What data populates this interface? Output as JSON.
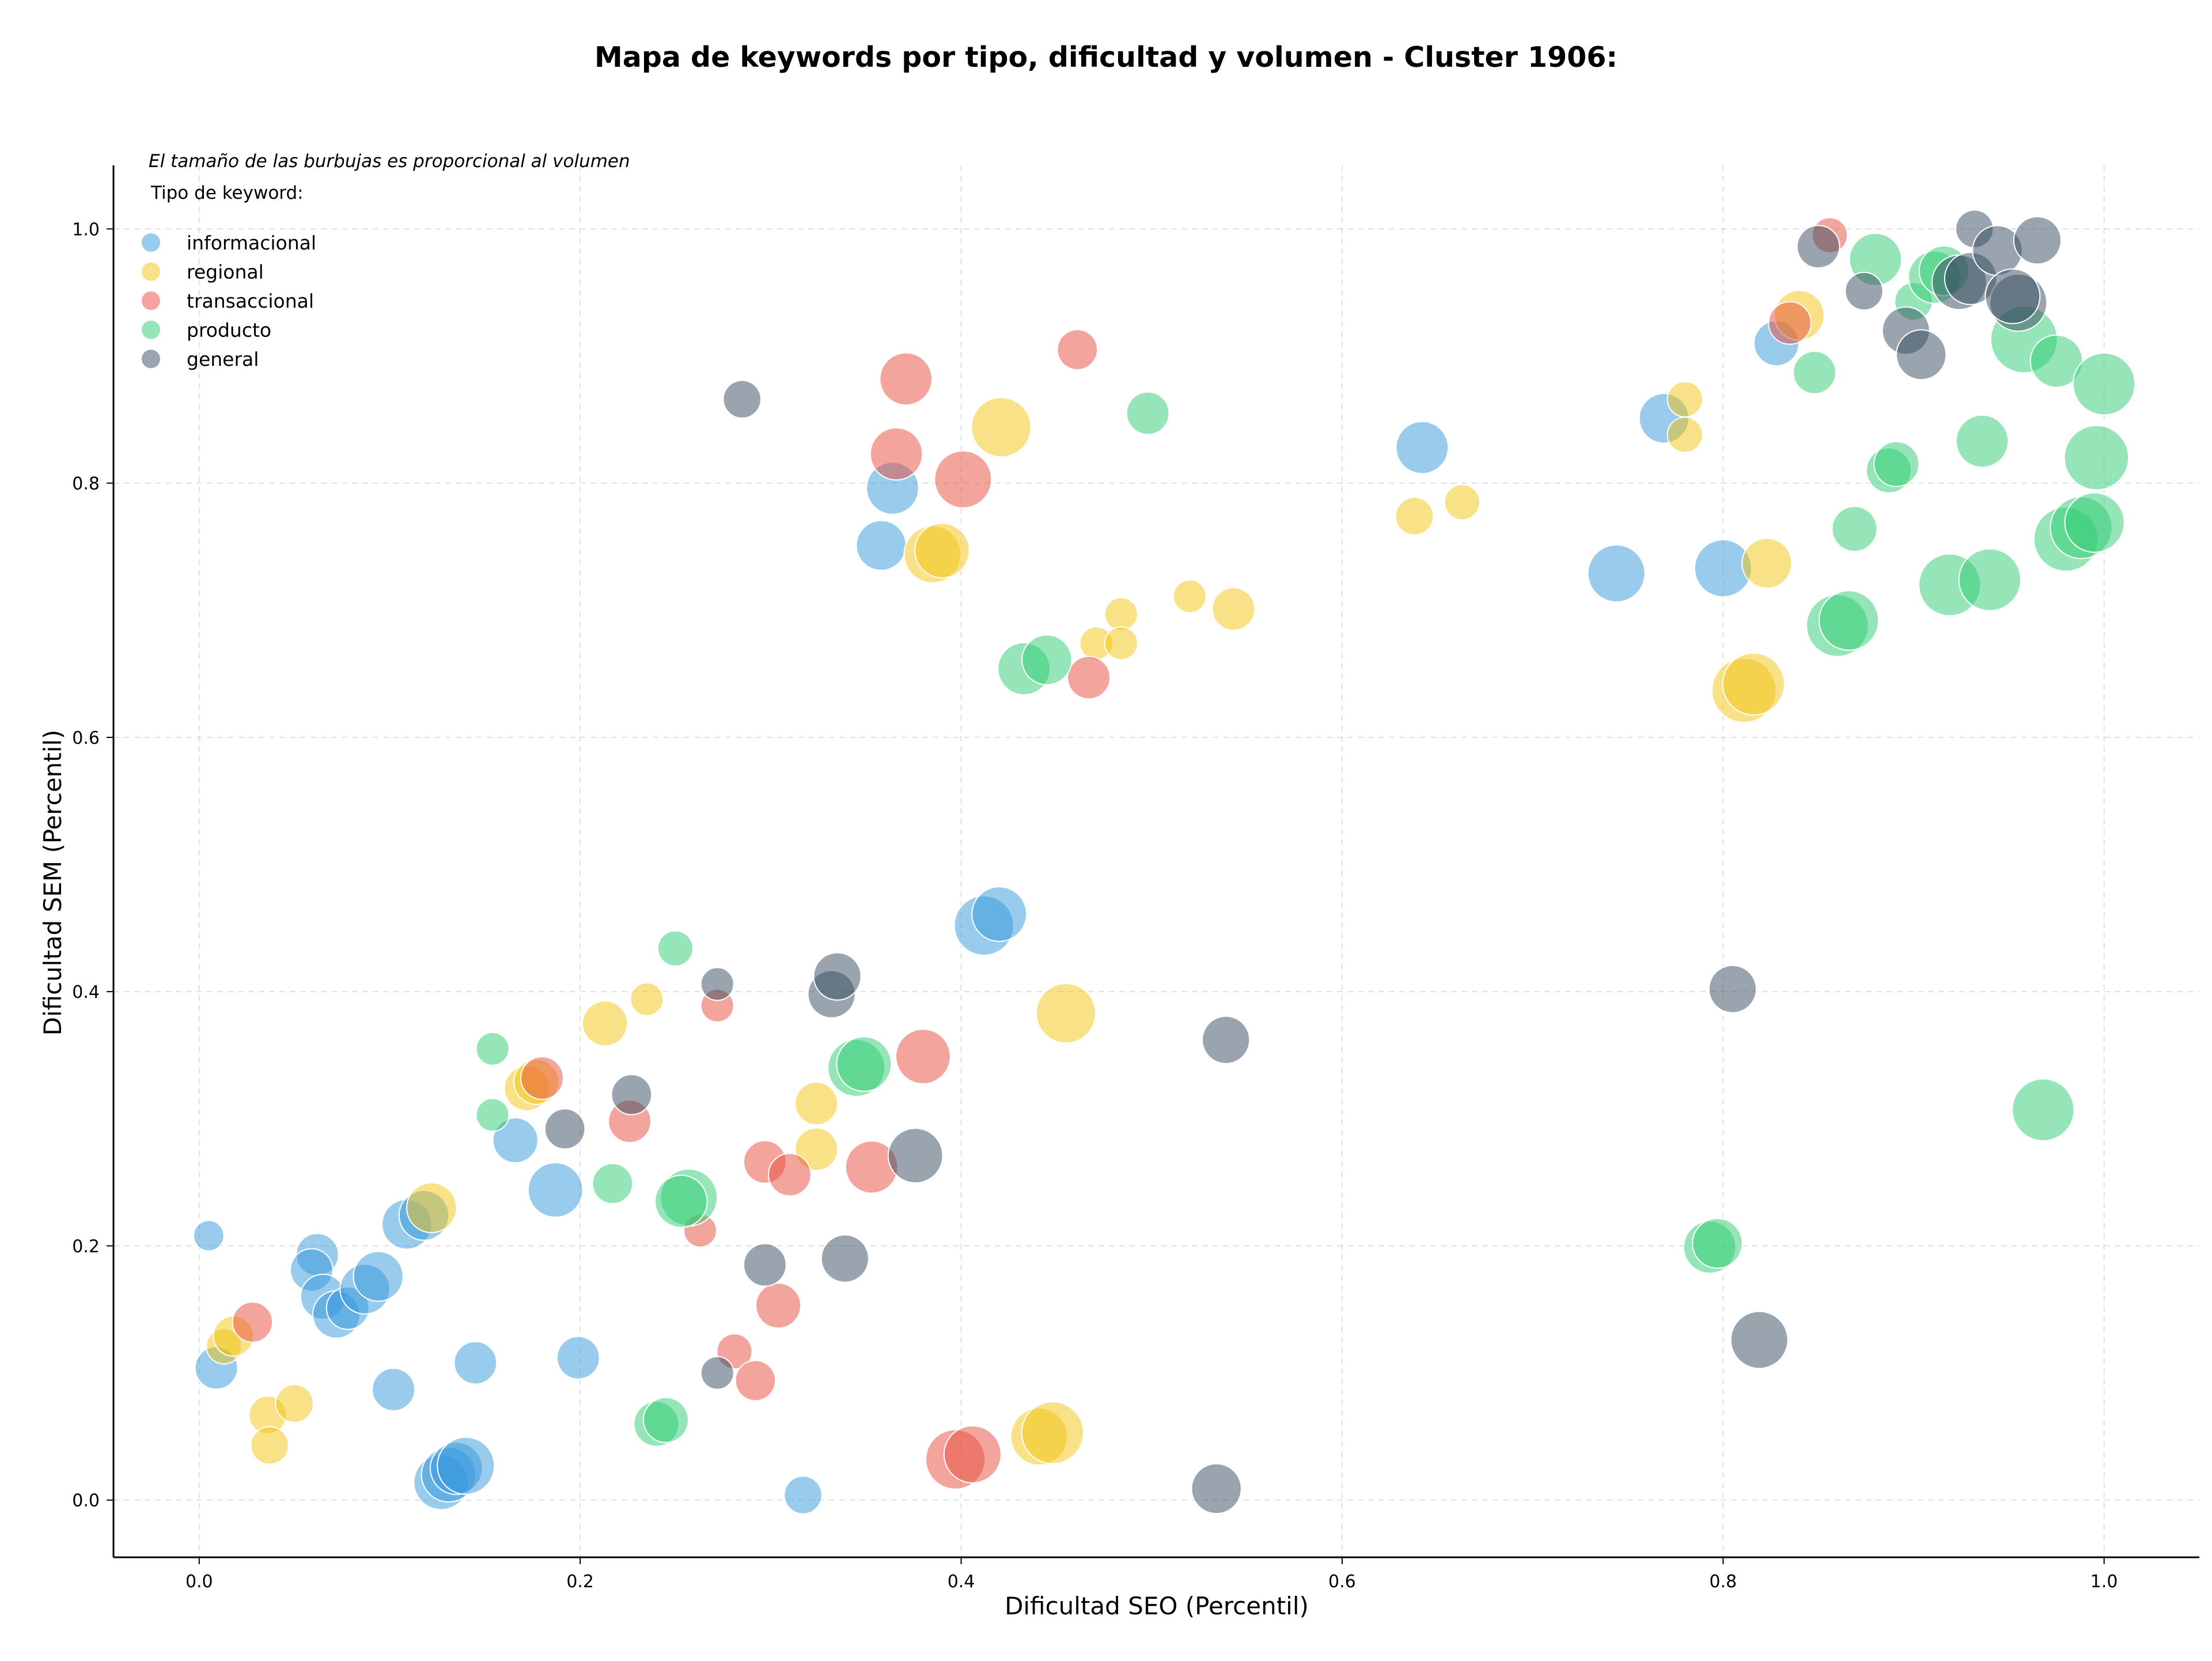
{
  "chart_data": {
    "type": "scatter",
    "title": "Mapa de keywords por tipo, dificultad y volumen - Cluster 1906:",
    "xlabel": "Dificultad SEO (Percentil)",
    "ylabel": "Dificultad SEM (Percentil)",
    "xlim": [
      -0.045,
      1.05
    ],
    "ylim": [
      -0.045,
      1.05
    ],
    "xticks": [
      0.0,
      0.2,
      0.4,
      0.6,
      0.8,
      1.0
    ],
    "yticks": [
      0.0,
      0.2,
      0.4,
      0.6,
      0.8,
      1.0
    ],
    "xtick_labels": [
      "0.0",
      "0.2",
      "0.4",
      "0.6",
      "0.8",
      "1.0"
    ],
    "ytick_labels": [
      "0.0",
      "0.2",
      "0.4",
      "0.6",
      "0.8",
      "1.0"
    ],
    "grid": true,
    "annotation": "El tamaño de las burbujas es proporcional al volumen",
    "legend_title": "Tipo de keyword:",
    "legend_position": "top-left",
    "series": [
      {
        "name": "informacional",
        "color": "#3498db",
        "points": [
          [
            0.005,
            0.208,
            0.2
          ],
          [
            0.009,
            0.104,
            0.45
          ],
          [
            0.062,
            0.193,
            0.45
          ],
          [
            0.059,
            0.181,
            0.45
          ],
          [
            0.065,
            0.16,
            0.5
          ],
          [
            0.072,
            0.146,
            0.55
          ],
          [
            0.078,
            0.151,
            0.45
          ],
          [
            0.087,
            0.166,
            0.6
          ],
          [
            0.094,
            0.176,
            0.6
          ],
          [
            0.102,
            0.087,
            0.45
          ],
          [
            0.109,
            0.217,
            0.6
          ],
          [
            0.118,
            0.224,
            0.6
          ],
          [
            0.127,
            0.014,
            0.7
          ],
          [
            0.131,
            0.02,
            0.7
          ],
          [
            0.135,
            0.025,
            0.65
          ],
          [
            0.14,
            0.027,
            0.75
          ],
          [
            0.145,
            0.108,
            0.45
          ],
          [
            0.166,
            0.283,
            0.5
          ],
          [
            0.187,
            0.244,
            0.7
          ],
          [
            0.199,
            0.112,
            0.45
          ],
          [
            0.317,
            0.004,
            0.35
          ],
          [
            0.358,
            0.751,
            0.6
          ],
          [
            0.364,
            0.796,
            0.65
          ],
          [
            0.412,
            0.452,
            0.8
          ],
          [
            0.42,
            0.461,
            0.7
          ],
          [
            0.642,
            0.828,
            0.65
          ],
          [
            0.744,
            0.729,
            0.75
          ],
          [
            0.769,
            0.851,
            0.6
          ],
          [
            0.8,
            0.733,
            0.75
          ],
          [
            0.828,
            0.91,
            0.5
          ]
        ]
      },
      {
        "name": "regional",
        "color": "#f1c40f",
        "points": [
          [
            0.013,
            0.121,
            0.3
          ],
          [
            0.018,
            0.129,
            0.4
          ],
          [
            0.036,
            0.067,
            0.35
          ],
          [
            0.037,
            0.043,
            0.35
          ],
          [
            0.05,
            0.076,
            0.35
          ],
          [
            0.122,
            0.23,
            0.6
          ],
          [
            0.172,
            0.324,
            0.5
          ],
          [
            0.177,
            0.329,
            0.5
          ],
          [
            0.213,
            0.375,
            0.5
          ],
          [
            0.235,
            0.394,
            0.25
          ],
          [
            0.324,
            0.312,
            0.45
          ],
          [
            0.324,
            0.276,
            0.45
          ],
          [
            0.385,
            0.744,
            0.75
          ],
          [
            0.39,
            0.747,
            0.7
          ],
          [
            0.421,
            0.844,
            0.8
          ],
          [
            0.441,
            0.05,
            0.75
          ],
          [
            0.448,
            0.053,
            0.85
          ],
          [
            0.455,
            0.383,
            0.8
          ],
          [
            0.471,
            0.674,
            0.25
          ],
          [
            0.484,
            0.697,
            0.25
          ],
          [
            0.484,
            0.674,
            0.25
          ],
          [
            0.52,
            0.711,
            0.25
          ],
          [
            0.543,
            0.701,
            0.45
          ],
          [
            0.638,
            0.774,
            0.35
          ],
          [
            0.663,
            0.785,
            0.3
          ],
          [
            0.78,
            0.866,
            0.3
          ],
          [
            0.78,
            0.838,
            0.3
          ],
          [
            0.811,
            0.637,
            0.9
          ],
          [
            0.816,
            0.642,
            0.85
          ],
          [
            0.823,
            0.737,
            0.6
          ],
          [
            0.84,
            0.932,
            0.6
          ]
        ]
      },
      {
        "name": "transaccional",
        "color": "#e74c3c",
        "points": [
          [
            0.028,
            0.14,
            0.4
          ],
          [
            0.18,
            0.332,
            0.45
          ],
          [
            0.226,
            0.298,
            0.45
          ],
          [
            0.263,
            0.212,
            0.25
          ],
          [
            0.272,
            0.389,
            0.25
          ],
          [
            0.281,
            0.117,
            0.3
          ],
          [
            0.292,
            0.094,
            0.4
          ],
          [
            0.297,
            0.266,
            0.45
          ],
          [
            0.304,
            0.153,
            0.5
          ],
          [
            0.31,
            0.256,
            0.45
          ],
          [
            0.353,
            0.262,
            0.65
          ],
          [
            0.366,
            0.823,
            0.65
          ],
          [
            0.371,
            0.882,
            0.65
          ],
          [
            0.38,
            0.349,
            0.7
          ],
          [
            0.397,
            0.032,
            0.8
          ],
          [
            0.406,
            0.036,
            0.75
          ],
          [
            0.401,
            0.803,
            0.75
          ],
          [
            0.461,
            0.905,
            0.4
          ],
          [
            0.467,
            0.647,
            0.45
          ],
          [
            0.835,
            0.926,
            0.45
          ],
          [
            0.856,
            0.995,
            0.3
          ]
        ]
      },
      {
        "name": "producto",
        "color": "#2ecc71",
        "points": [
          [
            0.154,
            0.303,
            0.25
          ],
          [
            0.154,
            0.355,
            0.25
          ],
          [
            0.217,
            0.249,
            0.4
          ],
          [
            0.24,
            0.06,
            0.5
          ],
          [
            0.245,
            0.063,
            0.5
          ],
          [
            0.25,
            0.434,
            0.3
          ],
          [
            0.257,
            0.238,
            0.75
          ],
          [
            0.253,
            0.235,
            0.65
          ],
          [
            0.345,
            0.34,
            0.75
          ],
          [
            0.349,
            0.343,
            0.7
          ],
          [
            0.433,
            0.654,
            0.65
          ],
          [
            0.445,
            0.661,
            0.6
          ],
          [
            0.498,
            0.855,
            0.45
          ],
          [
            0.793,
            0.199,
            0.65
          ],
          [
            0.797,
            0.202,
            0.6
          ],
          [
            0.848,
            0.887,
            0.45
          ],
          [
            0.86,
            0.688,
            0.85
          ],
          [
            0.866,
            0.692,
            0.8
          ],
          [
            0.869,
            0.764,
            0.5
          ],
          [
            0.88,
            0.976,
            0.65
          ],
          [
            0.887,
            0.81,
            0.5
          ],
          [
            0.891,
            0.815,
            0.5
          ],
          [
            0.9,
            0.943,
            0.35
          ],
          [
            0.911,
            0.962,
            0.65
          ],
          [
            0.916,
            0.967,
            0.6
          ],
          [
            0.919,
            0.72,
            0.85
          ],
          [
            0.936,
            0.833,
            0.65
          ],
          [
            0.94,
            0.724,
            0.85
          ],
          [
            0.958,
            0.913,
            0.95
          ],
          [
            0.968,
            0.307,
            0.85
          ],
          [
            0.975,
            0.896,
            0.65
          ],
          [
            0.98,
            0.756,
            0.9
          ],
          [
            0.988,
            0.765,
            0.85
          ],
          [
            0.995,
            0.769,
            0.8
          ],
          [
            1.0,
            0.878,
            0.85
          ],
          [
            0.996,
            0.82,
            0.9
          ]
        ]
      },
      {
        "name": "general",
        "color": "#34495e",
        "points": [
          [
            0.192,
            0.292,
            0.4
          ],
          [
            0.227,
            0.319,
            0.4
          ],
          [
            0.272,
            0.406,
            0.25
          ],
          [
            0.272,
            0.1,
            0.25
          ],
          [
            0.285,
            0.866,
            0.35
          ],
          [
            0.297,
            0.185,
            0.45
          ],
          [
            0.332,
            0.398,
            0.55
          ],
          [
            0.335,
            0.412,
            0.55
          ],
          [
            0.339,
            0.19,
            0.55
          ],
          [
            0.376,
            0.271,
            0.7
          ],
          [
            0.534,
            0.009,
            0.6
          ],
          [
            0.539,
            0.362,
            0.55
          ],
          [
            0.805,
            0.402,
            0.55
          ],
          [
            0.819,
            0.126,
            0.75
          ],
          [
            0.85,
            0.986,
            0.45
          ],
          [
            0.874,
            0.951,
            0.35
          ],
          [
            0.896,
            0.92,
            0.55
          ],
          [
            0.904,
            0.901,
            0.6
          ],
          [
            0.924,
            0.958,
            0.7
          ],
          [
            0.93,
            0.961,
            0.65
          ],
          [
            0.932,
            1.0,
            0.35
          ],
          [
            0.944,
            0.983,
            0.6
          ],
          [
            0.955,
            0.942,
            0.75
          ],
          [
            0.952,
            0.947,
            0.7
          ],
          [
            0.965,
            0.991,
            0.55
          ]
        ]
      }
    ]
  }
}
